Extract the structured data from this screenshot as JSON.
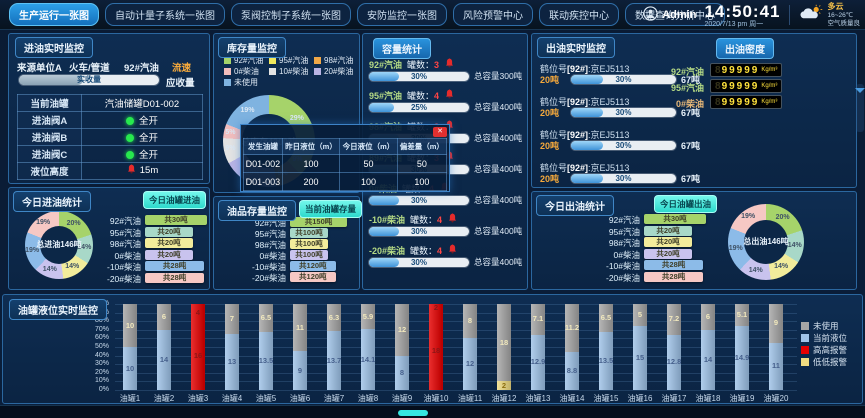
{
  "colors": {
    "accent_cyan": "#35e6e0",
    "active_tab": "#1e8fd5",
    "alarm_red": "#e62b2b",
    "ok_green": "#27e84e"
  },
  "header": {
    "tabs": [
      {
        "label": "生产运行一张图",
        "active": true
      },
      {
        "label": "自动计量子系统一张图",
        "active": false
      },
      {
        "label": "泵阀控制子系统一张图",
        "active": false
      },
      {
        "label": "安防监控一张图",
        "active": false
      },
      {
        "label": "风险预警中心",
        "active": false
      },
      {
        "label": "联动疾控中心",
        "active": false
      },
      {
        "label": "数据查询分析中心",
        "active": false
      }
    ],
    "user": "Admin",
    "time": "14:50:41",
    "date": "2020/7/13  pm  周一",
    "weather": {
      "condition": "多云",
      "temp": "16~26℃",
      "note": "空气质量良"
    }
  },
  "intake": {
    "title": "进油实时监控",
    "source": "来源单位A",
    "channel": "火车/管道",
    "product": "92#汽油",
    "flow_label": "流速",
    "received_label": "实收量",
    "receivable_label": "应收量",
    "received_pct": 46,
    "rows": [
      {
        "label": "当前油罐",
        "type": "text",
        "value": "汽油储罐D01-002"
      },
      {
        "label": "进油阀A",
        "type": "status",
        "value": "全开"
      },
      {
        "label": "进油阀B",
        "type": "status",
        "value": "全开"
      },
      {
        "label": "进油阀C",
        "type": "status",
        "value": "全开"
      },
      {
        "label": "液位高度",
        "type": "alarm",
        "value": "15m"
      }
    ]
  },
  "intake_stats": {
    "title": "今日进油统计",
    "button": "今日油罐进油",
    "center": "总进油146吨",
    "items": [
      {
        "label": "92#汽油",
        "amount": "共30吨",
        "value": 30,
        "pct": 20,
        "color": "#a6d36a"
      },
      {
        "label": "95#汽油",
        "amount": "共20吨",
        "value": 20,
        "pct": 14,
        "color": "#a8d8c8"
      },
      {
        "label": "98#汽油",
        "amount": "共20吨",
        "value": 20,
        "pct": 14,
        "color": "#f2ec9b"
      },
      {
        "label": "0#柴油",
        "amount": "共20吨",
        "value": 20,
        "pct": 14,
        "color": "#c9c3ee"
      },
      {
        "label": "-10#柴油",
        "amount": "共28吨",
        "value": 28,
        "pct": 19,
        "color": "#8cbbe8"
      },
      {
        "label": "-20#柴油",
        "amount": "共28吨",
        "value": 28,
        "pct": 19,
        "color": "#f6c8c4"
      }
    ]
  },
  "inventory": {
    "title": "库存量监控",
    "center": "总库存4200吨",
    "legend": [
      {
        "label": "92#汽油",
        "color": "#a6d36a"
      },
      {
        "label": "95#汽油",
        "color": "#f0e85c"
      },
      {
        "label": "98#汽油",
        "color": "#f0a848"
      },
      {
        "label": "0#柴油",
        "color": "#f2bdbd"
      },
      {
        "label": "10#柴油",
        "color": "#e3e3e3"
      },
      {
        "label": "20#柴油",
        "color": "#b9b4e4"
      },
      {
        "label": "未使用",
        "color": "#7fb3e0"
      }
    ],
    "donut": [
      {
        "label": "92#汽油",
        "pct": 29,
        "color": "#a6d36a"
      },
      {
        "label": "95#汽油",
        "pct": 9,
        "color": "#f0e85c"
      },
      {
        "label": "98#汽油",
        "pct": 9,
        "color": "#f0a848"
      },
      {
        "label": "20#柴油",
        "pct": 20,
        "color": "#b9b4e4"
      },
      {
        "label": "10#柴油",
        "pct": 9,
        "color": "#e3e3e3"
      },
      {
        "label": "0#柴油",
        "pct": 5,
        "color": "#f2bdbd"
      },
      {
        "label": "未使用",
        "pct": 19,
        "color": "#7fb3e0"
      }
    ]
  },
  "stock": {
    "title": "油品存量监控",
    "button": "当前油罐存量",
    "items": [
      {
        "label": "92#汽油",
        "amount": "共150吨",
        "value": 150,
        "color": "#a6d36a"
      },
      {
        "label": "95#汽油",
        "amount": "共100吨",
        "value": 100,
        "color": "#a8d8c8"
      },
      {
        "label": "98#汽油",
        "amount": "共100吨",
        "value": 100,
        "color": "#f2ec9b"
      },
      {
        "label": "0#柴油",
        "amount": "共100吨",
        "value": 100,
        "color": "#c9c3ee"
      },
      {
        "label": "-10#柴油",
        "amount": "共120吨",
        "value": 120,
        "color": "#8cbbe8"
      },
      {
        "label": "-20#柴油",
        "amount": "共120吨",
        "value": 120,
        "color": "#f6c8c4"
      }
    ]
  },
  "capacity": {
    "title": "容量统计",
    "count_label": "罐数：",
    "rows": [
      {
        "label": "92#汽油",
        "count": 3,
        "pct": 30,
        "total": "总容量300吨"
      },
      {
        "label": "95#汽油",
        "count": 4,
        "pct": 25,
        "total": "总容量400吨"
      },
      {
        "label": "98#汽油",
        "count": 3,
        "pct": 30,
        "total": "总容量400吨"
      },
      {
        "label": "89#汽油",
        "count": 3,
        "pct": 30,
        "total": "总容量400吨"
      },
      {
        "label": "0#柴油",
        "count": 4,
        "pct": 30,
        "total": "总容量400吨"
      },
      {
        "label": "-10#柴油",
        "count": 4,
        "pct": 30,
        "total": "总容量400吨"
      },
      {
        "label": "-20#柴油",
        "count": 4,
        "pct": 30,
        "total": "总容量400吨"
      }
    ]
  },
  "popup": {
    "close": "✕",
    "headers": [
      "发生油罐",
      "昨日液位（m）",
      "今日液位（m）",
      "偏差量（m）"
    ],
    "rows": [
      [
        "D01-002",
        "100",
        "50",
        "50"
      ],
      [
        "D01-003",
        "200",
        "100",
        "100"
      ]
    ]
  },
  "outflow": {
    "title": "出油实时监控",
    "hoses": [
      {
        "prefix": "鹤位号",
        "tag": "[92#]",
        "plate": ":京EJ5113",
        "left": "20吨",
        "pct": 30,
        "right": "67吨"
      },
      {
        "prefix": "鹤位号",
        "tag": "[92#]",
        "plate": ":京EJ5113",
        "left": "20吨",
        "pct": 30,
        "right": "67吨"
      },
      {
        "prefix": "鹤位号",
        "tag": "[92#]",
        "plate": ":京EJ5113",
        "left": "20吨",
        "pct": 30,
        "right": "67吨"
      },
      {
        "prefix": "鹤位号",
        "tag": "[92#]",
        "plate": ":京EJ5113",
        "left": "20吨",
        "pct": 30,
        "right": "67吨"
      }
    ],
    "density": {
      "title": "出油密度",
      "rows": [
        {
          "label": "92#汽油",
          "label_color": "#b5da85",
          "value": "99999",
          "unit": "Kg/m³"
        },
        {
          "label": "95#汽油",
          "label_color": "#b5da85",
          "value": "99999",
          "unit": "Kg/m³"
        },
        {
          "label": "0#柴油",
          "label_color": "#e8b878",
          "value": "99999",
          "unit": "Kg/m³"
        }
      ]
    }
  },
  "outflow_stats": {
    "title": "今日出油统计",
    "button": "今日油罐出油",
    "center": "总出油146吨",
    "items": [
      {
        "label": "92#汽油",
        "amount": "共30吨",
        "value": 30,
        "pct": 20,
        "color": "#a6d36a"
      },
      {
        "label": "95#汽油",
        "amount": "共20吨",
        "value": 20,
        "pct": 14,
        "color": "#a8d8c8"
      },
      {
        "label": "98#汽油",
        "amount": "共20吨",
        "value": 20,
        "pct": 14,
        "color": "#f2ec9b"
      },
      {
        "label": "0#柴油",
        "amount": "共20吨",
        "value": 20,
        "pct": 14,
        "color": "#c9c3ee"
      },
      {
        "label": "-10#柴油",
        "amount": "共28吨",
        "value": 28,
        "pct": 19,
        "color": "#8cbbe8"
      },
      {
        "label": "-20#柴油",
        "amount": "共28吨",
        "value": 28,
        "pct": 19,
        "color": "#f6c8c4"
      }
    ]
  },
  "tanks": {
    "title": "油罐液位实时监控",
    "capacity_per_tank": 20,
    "y_ticks": [
      "0%",
      "10%",
      "20%",
      "30%",
      "40%",
      "50%",
      "60%",
      "70%",
      "80%",
      "90%",
      "100%"
    ],
    "legend": [
      {
        "label": "未使用",
        "color": "#a6a6a6"
      },
      {
        "label": "当前液位",
        "color": "#9fc3e8"
      },
      {
        "label": "高高报警",
        "color": "#e60000"
      },
      {
        "label": "低低报警",
        "color": "#f0dc82"
      }
    ],
    "bars": [
      {
        "name": "油罐1",
        "current": 10,
        "unused": 10,
        "alert": "none"
      },
      {
        "name": "油罐2",
        "current": 14,
        "unused": 6,
        "alert": "none"
      },
      {
        "name": "油罐3",
        "current": 16,
        "unused": 4,
        "alert": "high"
      },
      {
        "name": "油罐4",
        "current": 13,
        "unused": 7,
        "alert": "none"
      },
      {
        "name": "油罐5",
        "current": 13.5,
        "unused": 6.5,
        "alert": "none"
      },
      {
        "name": "油罐6",
        "current": 9,
        "unused": 11,
        "alert": "none"
      },
      {
        "name": "油罐7",
        "current": 13.7,
        "unused": 6.3,
        "alert": "none"
      },
      {
        "name": "油罐8",
        "current": 14.1,
        "unused": 5.9,
        "alert": "none"
      },
      {
        "name": "油罐9",
        "current": 8,
        "unused": 12,
        "alert": "none"
      },
      {
        "name": "油罐10",
        "current": 18,
        "unused": 2,
        "alert": "high"
      },
      {
        "name": "油罐11",
        "current": 12,
        "unused": 8,
        "alert": "none"
      },
      {
        "name": "油罐12",
        "current": 2,
        "unused": 18,
        "alert": "low"
      },
      {
        "name": "油罐13",
        "current": 12.9,
        "unused": 7.1,
        "alert": "none"
      },
      {
        "name": "油罐14",
        "current": 8.8,
        "unused": 11.2,
        "alert": "none"
      },
      {
        "name": "油罐15",
        "current": 13.5,
        "unused": 6.5,
        "alert": "none"
      },
      {
        "name": "油罐16",
        "current": 15,
        "unused": 5,
        "alert": "none"
      },
      {
        "name": "油罐17",
        "current": 12.8,
        "unused": 7.2,
        "alert": "none"
      },
      {
        "name": "油罐18",
        "current": 14,
        "unused": 6,
        "alert": "none"
      },
      {
        "name": "油罐19",
        "current": 14.9,
        "unused": 5.1,
        "alert": "none"
      },
      {
        "name": "油罐20",
        "current": 11,
        "unused": 9,
        "alert": "none"
      }
    ]
  },
  "chart_data": [
    {
      "type": "pie",
      "title": "今日进油统计",
      "center_total": "总进油146吨",
      "unit": "吨",
      "labels": [
        "92#汽油",
        "95#汽油",
        "98#汽油",
        "0#柴油",
        "-10#柴油",
        "-20#柴油"
      ],
      "values": [
        30,
        20,
        20,
        20,
        28,
        28
      ],
      "pcts": [
        20,
        14,
        14,
        14,
        19,
        19
      ]
    },
    {
      "type": "pie",
      "title": "库存量监控",
      "center_total": "总库存4200吨",
      "labels": [
        "92#汽油",
        "95#汽油",
        "98#汽油",
        "20#柴油",
        "10#柴油",
        "0#柴油",
        "未使用"
      ],
      "values_pct": [
        29,
        9,
        9,
        20,
        9,
        5,
        19
      ]
    },
    {
      "type": "pie",
      "title": "今日出油统计",
      "center_total": "总出油146吨",
      "unit": "吨",
      "labels": [
        "92#汽油",
        "95#汽油",
        "98#汽油",
        "0#柴油",
        "-10#柴油",
        "-20#柴油"
      ],
      "values": [
        30,
        20,
        20,
        20,
        28,
        28
      ],
      "pcts": [
        20,
        14,
        14,
        14,
        19,
        19
      ]
    },
    {
      "type": "bar",
      "title": "油罐液位实时监控",
      "stacked": true,
      "ylim": [
        0,
        100
      ],
      "y_unit": "%",
      "categories": [
        "油罐1",
        "油罐2",
        "油罐3",
        "油罐4",
        "油罐5",
        "油罐6",
        "油罐7",
        "油罐8",
        "油罐9",
        "油罐10",
        "油罐11",
        "油罐12",
        "油罐13",
        "油罐14",
        "油罐15",
        "油罐16",
        "油罐17",
        "油罐18",
        "油罐19",
        "油罐20"
      ],
      "series": [
        {
          "name": "当前液位",
          "values": [
            10,
            14,
            16,
            13,
            13.5,
            9,
            13.7,
            14.1,
            8,
            18,
            12,
            2,
            12.9,
            8.8,
            13.5,
            15,
            12.8,
            14,
            14.9,
            11
          ]
        },
        {
          "name": "未使用",
          "values": [
            10,
            6,
            4,
            7,
            6.5,
            11,
            6.3,
            5.9,
            12,
            2,
            8,
            18,
            7.1,
            11.2,
            6.5,
            5,
            7.2,
            6,
            5.1,
            9
          ]
        }
      ],
      "alerts": {
        "高高报警": [
          "油罐3",
          "油罐10"
        ],
        "低低报警": [
          "油罐12"
        ]
      }
    }
  ]
}
